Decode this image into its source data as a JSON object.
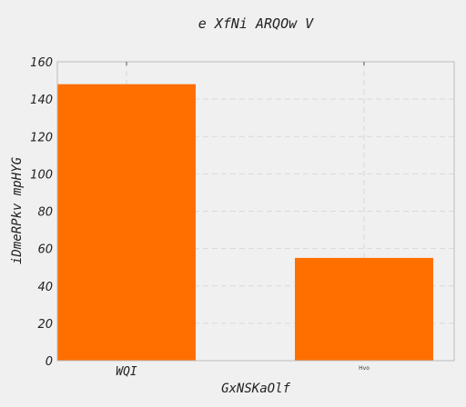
{
  "chart_data": {
    "type": "bar",
    "title": "e XfNi ARQOw V",
    "xlabel": "GxNSKaOlf",
    "ylabel": "iDmeRPkv mpHYG",
    "categories": [
      "WQI",
      "Hvo"
    ],
    "values": [
      148,
      55
    ],
    "ylim": [
      0,
      160
    ],
    "yticks": [
      0,
      20,
      40,
      60,
      80,
      100,
      120,
      140,
      160
    ],
    "grid": true,
    "bar_color": "#ff6f00"
  }
}
